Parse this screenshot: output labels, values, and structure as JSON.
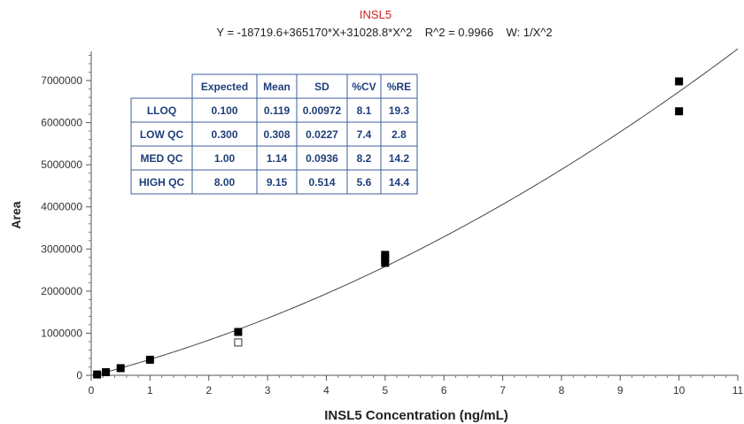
{
  "chart_data": {
    "type": "scatter",
    "title": "INSL5",
    "subtitle": "Y = -18719.6+365170*X+31028.8*X^2    R^2 = 0.9966    W: 1/X^2",
    "title_color": "#cc2222",
    "xlabel": "INSL5 Concentration (ng/mL)",
    "ylabel": "Area",
    "xlim": [
      0,
      11
    ],
    "ylim": [
      0,
      7000000
    ],
    "x_ticks": [
      0,
      1,
      2,
      3,
      4,
      5,
      6,
      7,
      8,
      9,
      10,
      11
    ],
    "y_ticks": [
      0,
      1000000,
      2000000,
      3000000,
      4000000,
      5000000,
      6000000,
      7000000
    ],
    "x_tick_labels": [
      "0",
      "1",
      "2",
      "3",
      "4",
      "5",
      "6",
      "7",
      "8",
      "9",
      "10",
      "11"
    ],
    "y_tick_labels": [
      "0",
      "1000000",
      "2000000",
      "3000000",
      "4000000",
      "5000000",
      "6000000",
      "7000000"
    ],
    "fit": {
      "type": "quadratic",
      "intercept": -18719.6,
      "b1": 365170,
      "b2": 31028.8,
      "x_range": [
        0.1,
        11
      ]
    },
    "series": [
      {
        "marker": "filled-square",
        "points": [
          [
            0.1,
            20000
          ],
          [
            0.25,
            75000
          ],
          [
            0.5,
            170000
          ],
          [
            1.0,
            370000
          ],
          [
            2.5,
            1030000
          ],
          [
            5.0,
            2860000
          ],
          [
            5.0,
            2770000
          ],
          [
            5.0,
            2670000
          ],
          [
            10.0,
            6980000
          ],
          [
            10.0,
            6270000
          ]
        ]
      },
      {
        "marker": "open-square",
        "points": [
          [
            2.5,
            780000
          ]
        ]
      }
    ],
    "grid": false,
    "table": {
      "headers": [
        "",
        "Expected",
        "Mean",
        "SD",
        "%CV",
        "%RE"
      ],
      "rows": [
        [
          "LLOQ",
          "0.100",
          "0.119",
          "0.00972",
          "8.1",
          "19.3"
        ],
        [
          "LOW QC",
          "0.300",
          "0.308",
          "0.0227",
          "7.4",
          "2.8"
        ],
        [
          "MED QC",
          "1.00",
          "1.14",
          "0.0936",
          "8.2",
          "14.2"
        ],
        [
          "HIGH QC",
          "8.00",
          "9.15",
          "0.514",
          "5.6",
          "14.4"
        ]
      ]
    }
  }
}
